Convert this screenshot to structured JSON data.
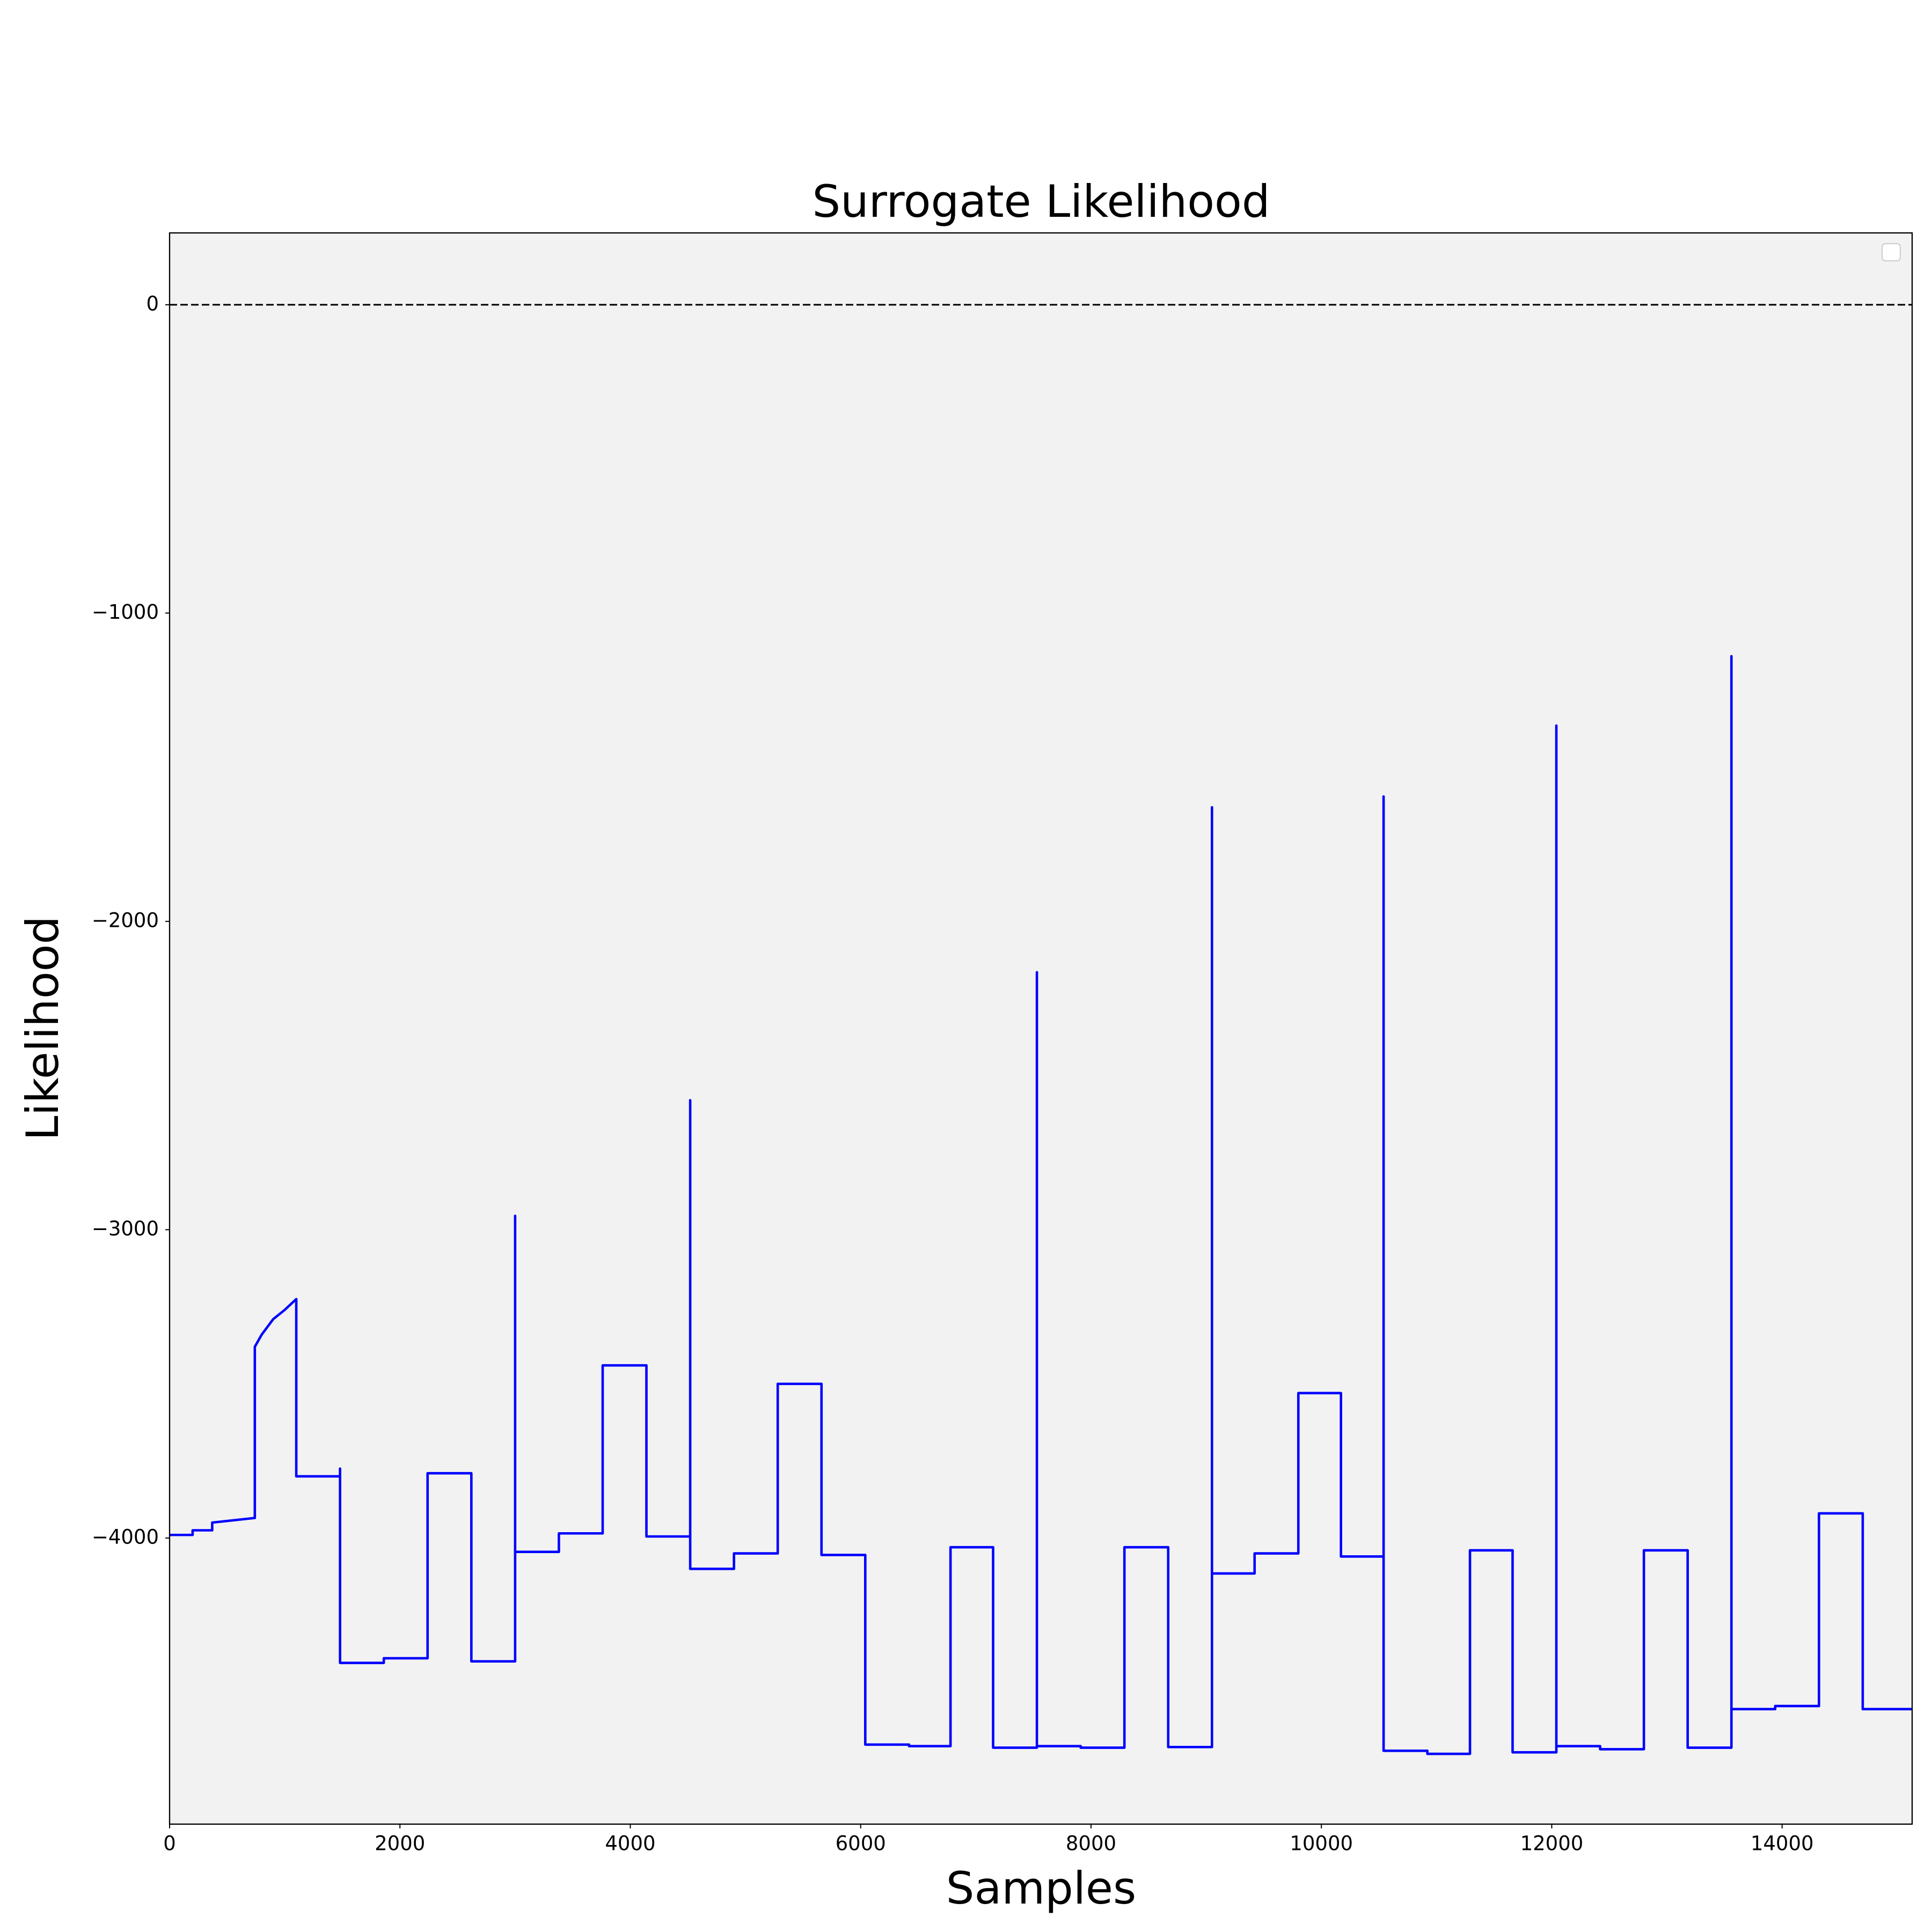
{
  "chart_data": {
    "type": "line",
    "title": "Surrogate  Likelihood",
    "xlabel": "Samples",
    "ylabel": "Likelihood",
    "x": [
      0,
      200,
      200,
      370,
      370,
      740,
      740,
      800,
      900,
      1000,
      1100,
      1100,
      1480,
      1480,
      1480,
      1860,
      1860,
      2240,
      2240,
      2620,
      2620,
      3000,
      3000,
      3000,
      3380,
      3380,
      3760,
      3760,
      4140,
      4140,
      4520,
      4520,
      4520,
      4900,
      4900,
      5280,
      5280,
      5660,
      5660,
      6040,
      6040,
      6420,
      6420,
      6780,
      6780,
      7150,
      7150,
      7530,
      7530,
      7530,
      7910,
      7910,
      8290,
      8290,
      8670,
      8670,
      9050,
      9050,
      9050,
      9420,
      9420,
      9800,
      9800,
      10170,
      10170,
      10540,
      10540,
      10540,
      10920,
      10920,
      11290,
      11290,
      11660,
      11660,
      12040,
      12040,
      12040,
      12420,
      12420,
      12800,
      12800,
      13180,
      13180,
      13560,
      13560,
      13560,
      13940,
      13940,
      14320,
      14320,
      14700,
      14700,
      15129
    ],
    "series": [
      {
        "color": "#0000ff",
        "values": [
          -3990,
          -3990,
          -3975,
          -3975,
          -3950,
          -3935,
          -3380,
          -3340,
          -3290,
          -3260,
          -3225,
          -3800,
          -3800,
          -3775,
          -4405,
          -4405,
          -4390,
          -4390,
          -3790,
          -3790,
          -4400,
          -4400,
          -2955,
          -4045,
          -4045,
          -3985,
          -3985,
          -3440,
          -3440,
          -3995,
          -3995,
          -2580,
          -4100,
          -4100,
          -4050,
          -4050,
          -3500,
          -3500,
          -4055,
          -4055,
          -4670,
          -4670,
          -4675,
          -4675,
          -4030,
          -4030,
          -4680,
          -4680,
          -2165,
          -4675,
          -4675,
          -4680,
          -4680,
          -4030,
          -4030,
          -4678,
          -4678,
          -1630,
          -4115,
          -4115,
          -4050,
          -4050,
          -3530,
          -3530,
          -4060,
          -4060,
          -1595,
          -4690,
          -4690,
          -4700,
          -4700,
          -4040,
          -4040,
          -4695,
          -4695,
          -1365,
          -4675,
          -4675,
          -4685,
          -4685,
          -4040,
          -4040,
          -4680,
          -4680,
          -1140,
          -4555,
          -4555,
          -4545,
          -4545,
          -3920,
          -3920,
          -4555,
          -4555
        ]
      }
    ],
    "xlim": [
      0,
      15129
    ],
    "xticks": [
      0,
      2000,
      4000,
      6000,
      8000,
      10000,
      12000,
      14000
    ],
    "ylim": [
      -4928,
      233
    ],
    "yticks": [
      {
        "value": -4000,
        "label": "−4000"
      },
      {
        "value": -3000,
        "label": "−3000"
      },
      {
        "value": -2000,
        "label": "−2000"
      },
      {
        "value": -1000,
        "label": "−1000"
      },
      0
    ],
    "hline": {
      "value": 0,
      "color": "#000000",
      "style": "dashed"
    },
    "legend": "upper right",
    "grid": false
  }
}
